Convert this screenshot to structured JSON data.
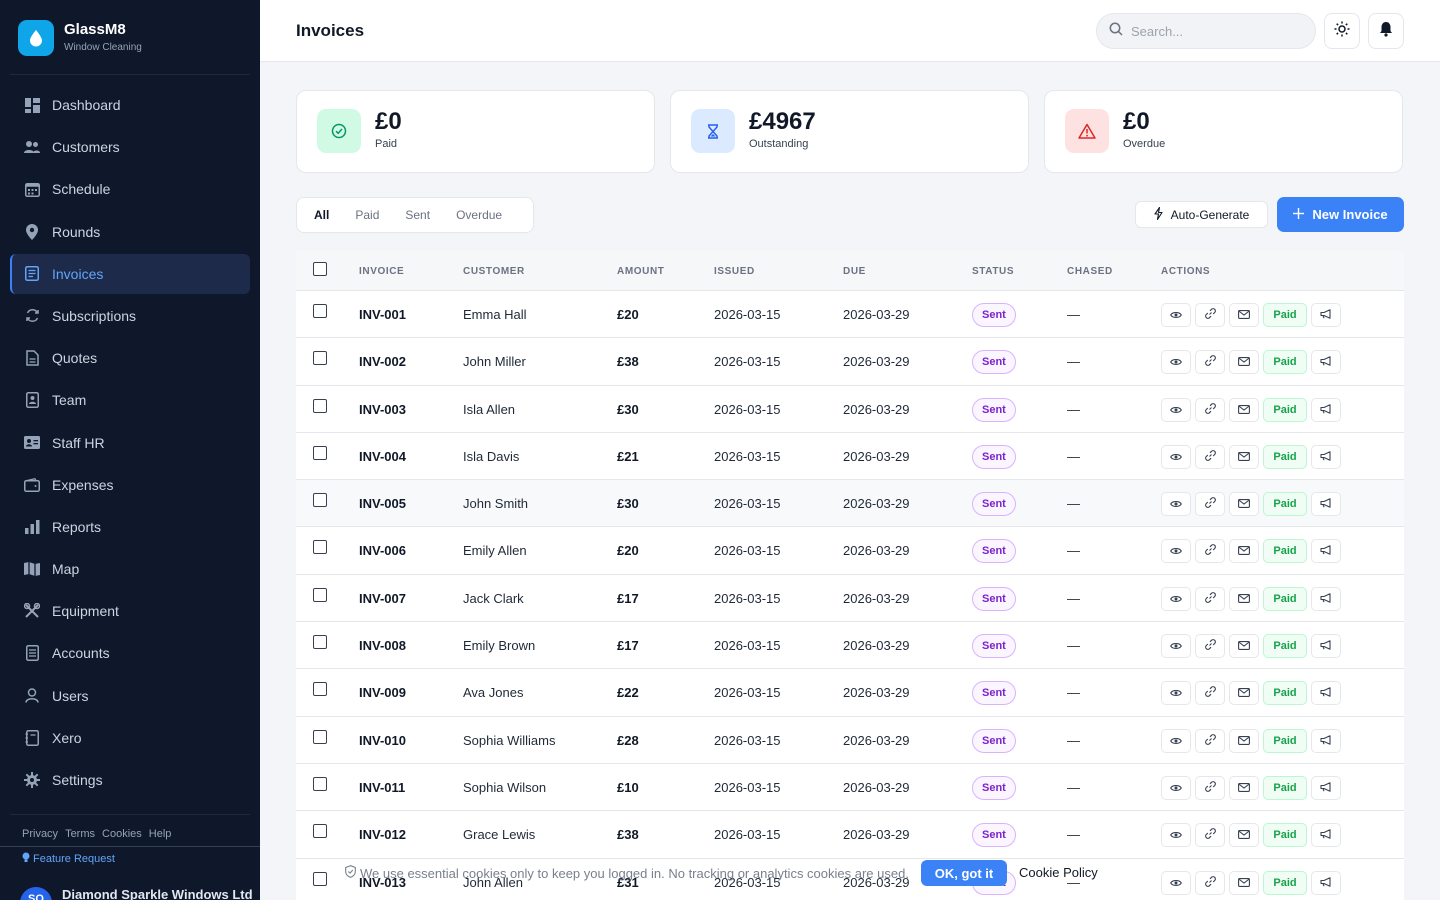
{
  "brand": {
    "name": "GlassM8",
    "tagline": "Window Cleaning"
  },
  "nav": [
    {
      "label": "Dashboard",
      "icon": "dashboard-icon"
    },
    {
      "label": "Customers",
      "icon": "customers-icon"
    },
    {
      "label": "Schedule",
      "icon": "calendar-icon"
    },
    {
      "label": "Rounds",
      "icon": "pin-icon"
    },
    {
      "label": "Invoices",
      "icon": "invoice-icon",
      "active": true
    },
    {
      "label": "Subscriptions",
      "icon": "refresh-icon"
    },
    {
      "label": "Quotes",
      "icon": "document-icon"
    },
    {
      "label": "Team",
      "icon": "badge-icon"
    },
    {
      "label": "Staff HR",
      "icon": "id-card-icon"
    },
    {
      "label": "Expenses",
      "icon": "wallet-icon"
    },
    {
      "label": "Reports",
      "icon": "bar-chart-icon"
    },
    {
      "label": "Map",
      "icon": "map-icon"
    },
    {
      "label": "Equipment",
      "icon": "tools-icon"
    },
    {
      "label": "Accounts",
      "icon": "ledger-icon"
    },
    {
      "label": "Users",
      "icon": "user-icon"
    },
    {
      "label": "Xero",
      "icon": "book-icon"
    },
    {
      "label": "Settings",
      "icon": "gear-icon"
    }
  ],
  "legal": {
    "privacy": "Privacy",
    "terms": "Terms",
    "cookies": "Cookies",
    "help": "Help"
  },
  "feature_request": "Feature Request",
  "account": {
    "initials": "SO",
    "name": "Diamond Sparkle Windows Ltd"
  },
  "header": {
    "title": "Invoices",
    "search_placeholder": "Search..."
  },
  "stats": [
    {
      "value": "£0",
      "label": "Paid",
      "icon": "check-circle-icon",
      "bg": "#d1fae5",
      "color": "#059669"
    },
    {
      "value": "£4967",
      "label": "Outstanding",
      "icon": "hourglass-icon",
      "bg": "#dbeafe",
      "color": "#2563eb"
    },
    {
      "value": "£0",
      "label": "Overdue",
      "icon": "warning-icon",
      "bg": "#fee2e2",
      "color": "#dc2626"
    }
  ],
  "filters": [
    "All",
    "Paid",
    "Sent",
    "Overdue"
  ],
  "actions": {
    "auto_generate": "Auto-Generate",
    "new_invoice": "New Invoice"
  },
  "table": {
    "headers": [
      "INVOICE",
      "CUSTOMER",
      "AMOUNT",
      "ISSUED",
      "DUE",
      "STATUS",
      "CHASED",
      "ACTIONS"
    ],
    "paid_label": "Paid",
    "rows": [
      {
        "invoice": "INV-001",
        "customer": "Emma Hall",
        "amount": "£20",
        "issued": "2026-03-15",
        "due": "2026-03-29",
        "status": "Sent",
        "chased": "—"
      },
      {
        "invoice": "INV-002",
        "customer": "John Miller",
        "amount": "£38",
        "issued": "2026-03-15",
        "due": "2026-03-29",
        "status": "Sent",
        "chased": "—"
      },
      {
        "invoice": "INV-003",
        "customer": "Isla Allen",
        "amount": "£30",
        "issued": "2026-03-15",
        "due": "2026-03-29",
        "status": "Sent",
        "chased": "—"
      },
      {
        "invoice": "INV-004",
        "customer": "Isla Davis",
        "amount": "£21",
        "issued": "2026-03-15",
        "due": "2026-03-29",
        "status": "Sent",
        "chased": "—"
      },
      {
        "invoice": "INV-005",
        "customer": "John Smith",
        "amount": "£30",
        "issued": "2026-03-15",
        "due": "2026-03-29",
        "status": "Sent",
        "chased": "—"
      },
      {
        "invoice": "INV-006",
        "customer": "Emily Allen",
        "amount": "£20",
        "issued": "2026-03-15",
        "due": "2026-03-29",
        "status": "Sent",
        "chased": "—"
      },
      {
        "invoice": "INV-007",
        "customer": "Jack Clark",
        "amount": "£17",
        "issued": "2026-03-15",
        "due": "2026-03-29",
        "status": "Sent",
        "chased": "—"
      },
      {
        "invoice": "INV-008",
        "customer": "Emily Brown",
        "amount": "£17",
        "issued": "2026-03-15",
        "due": "2026-03-29",
        "status": "Sent",
        "chased": "—"
      },
      {
        "invoice": "INV-009",
        "customer": "Ava Jones",
        "amount": "£22",
        "issued": "2026-03-15",
        "due": "2026-03-29",
        "status": "Sent",
        "chased": "—"
      },
      {
        "invoice": "INV-010",
        "customer": "Sophia Williams",
        "amount": "£28",
        "issued": "2026-03-15",
        "due": "2026-03-29",
        "status": "Sent",
        "chased": "—"
      },
      {
        "invoice": "INV-011",
        "customer": "Sophia Wilson",
        "amount": "£10",
        "issued": "2026-03-15",
        "due": "2026-03-29",
        "status": "Sent",
        "chased": "—"
      },
      {
        "invoice": "INV-012",
        "customer": "Grace Lewis",
        "amount": "£38",
        "issued": "2026-03-15",
        "due": "2026-03-29",
        "status": "Sent",
        "chased": "—"
      },
      {
        "invoice": "INV-013",
        "customer": "John Allen",
        "amount": "£31",
        "issued": "2026-03-15",
        "due": "2026-03-29",
        "status": "Sent",
        "chased": "—"
      }
    ]
  },
  "cookie": {
    "text": "We use essential cookies only to keep you logged in. No tracking or analytics cookies are used.",
    "ok": "OK, got it",
    "policy": "Cookie Policy"
  }
}
